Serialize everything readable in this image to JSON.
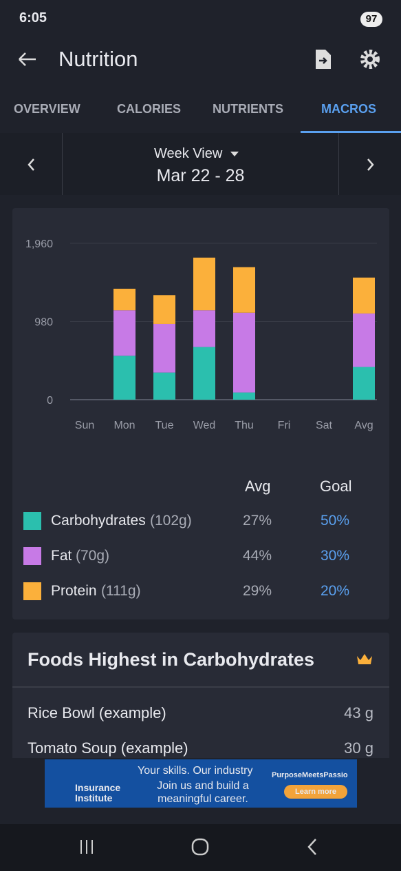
{
  "status": {
    "time": "6:05",
    "battery": "97"
  },
  "header": {
    "title": "Nutrition"
  },
  "tabs": [
    "OVERVIEW",
    "CALORIES",
    "NUTRIENTS",
    "MACROS"
  ],
  "week": {
    "view": "Week View",
    "range": "Mar 22 - 28"
  },
  "chart_data": {
    "type": "bar",
    "stacked": true,
    "grid": true,
    "categories": [
      "Sun",
      "Mon",
      "Tue",
      "Wed",
      "Thu",
      "Fri",
      "Sat",
      "Avg"
    ],
    "series": [
      {
        "name": "Carbohydrates",
        "color": "#2bbfae",
        "values": [
          null,
          550,
          340,
          660,
          90,
          null,
          null,
          410
        ]
      },
      {
        "name": "Fat",
        "color": "#c77ae6",
        "values": [
          null,
          570,
          610,
          460,
          1000,
          null,
          null,
          670
        ]
      },
      {
        "name": "Protein",
        "color": "#fbb03b",
        "values": [
          null,
          270,
          360,
          660,
          570,
          null,
          null,
          450
        ]
      }
    ],
    "ylim": [
      0,
      1960
    ],
    "yticks": [
      0,
      980,
      {
        "value": 1960,
        "label": "1,960"
      }
    ]
  },
  "macro_table": {
    "headers": [
      "Avg",
      "Goal"
    ],
    "rows": [
      {
        "amount": "(102g)",
        "avg": "27%",
        "goal": "50%"
      },
      {
        "amount": "(70g)",
        "avg": "44%",
        "goal": "30%"
      },
      {
        "amount": "(111g)",
        "avg": "29%",
        "goal": "20%"
      }
    ]
  },
  "foods": {
    "title": "Foods Highest in Carbohydrates",
    "items": [
      {
        "name": "Rice Bowl (example)",
        "amount": "43 g"
      },
      {
        "name": "Tomato Soup (example)",
        "amount": "30 g"
      }
    ]
  },
  "ad": {
    "brand": "Insurance Institute",
    "line1": "Your skills. Our industry",
    "line2": "Join us and build a meaningful career.",
    "tag": "PurposeMeetsPassio",
    "button": "Learn more"
  }
}
